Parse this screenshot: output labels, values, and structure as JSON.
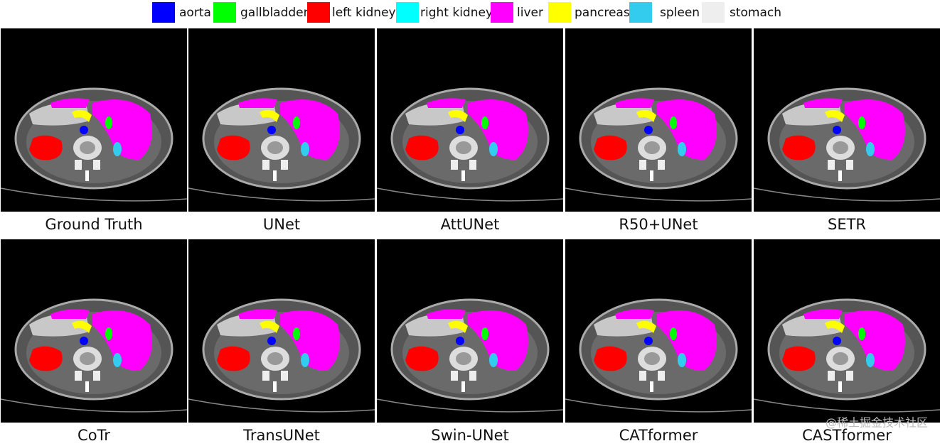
{
  "legend": [
    {
      "label": "aorta",
      "color": "#0000ff"
    },
    {
      "label": "gallbladder",
      "color": "#00ff00"
    },
    {
      "label": "left kidney",
      "color": "#ff0000"
    },
    {
      "label": "right kidney",
      "color": "#00ffff"
    },
    {
      "label": "liver",
      "color": "#ff00ff"
    },
    {
      "label": "pancreas",
      "color": "#ffff00"
    },
    {
      "label": "spleen",
      "color": "#33ccee"
    },
    {
      "label": "stomach",
      "color": "#eeeeee"
    }
  ],
  "panels": [
    {
      "label": "Ground Truth"
    },
    {
      "label": "UNet"
    },
    {
      "label": "AttUNet"
    },
    {
      "label": "R50+UNet"
    },
    {
      "label": "SETR"
    },
    {
      "label": "CoTr"
    },
    {
      "label": "TransUNet"
    },
    {
      "label": "Swin-UNet"
    },
    {
      "label": "CATformer"
    },
    {
      "label": "CASTformer"
    }
  ],
  "watermark": "@稀土掘金技术社区"
}
